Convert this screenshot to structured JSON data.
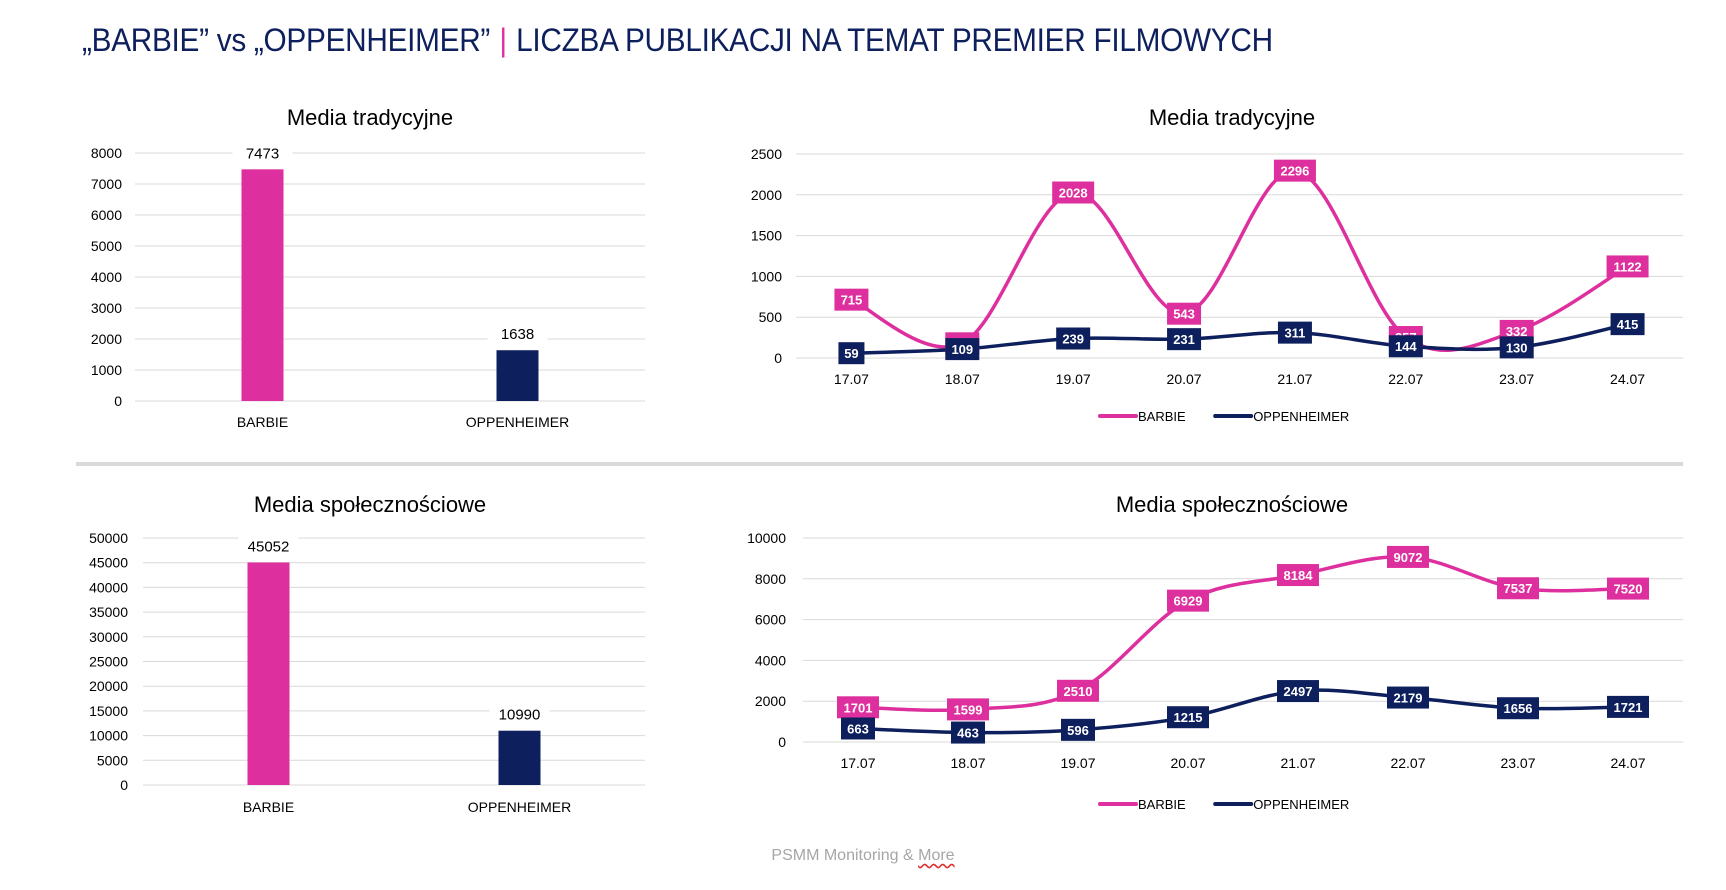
{
  "header": {
    "title_left": "„BARBIE” vs „OPPENHEIMER”",
    "title_sep": "|",
    "title_right": "LICZBA PUBLIKACJI NA TEMAT PREMIER FILMOWYCH"
  },
  "footer": {
    "text": "PSMM Monitoring & ",
    "text_more": "More"
  },
  "colors": {
    "barbie": "#de2f9e",
    "oppenheimer": "#0d1f5c",
    "grid": "#d9d9d9"
  },
  "chart_data": [
    {
      "type": "bar",
      "title": "Media tradycyjne",
      "categories": [
        "BARBIE",
        "OPPENHEIMER"
      ],
      "values": [
        7473,
        1638
      ],
      "yticks": [
        "0",
        "1000",
        "2000",
        "3000",
        "4000",
        "5000",
        "6000",
        "7000",
        "8000"
      ],
      "ylim": [
        0,
        8000
      ]
    },
    {
      "type": "line",
      "title": "Media tradycyjne",
      "x": [
        "17.07",
        "18.07",
        "19.07",
        "20.07",
        "21.07",
        "22.07",
        "23.07",
        "24.07"
      ],
      "series": [
        {
          "name": "BARBIE",
          "values": [
            715,
            180,
            2028,
            543,
            2296,
            257,
            332,
            1122
          ]
        },
        {
          "name": "OPPENHEIMER",
          "values": [
            59,
            109,
            239,
            231,
            311,
            144,
            130,
            415
          ]
        }
      ],
      "yticks": [
        "0",
        "500",
        "1000",
        "1500",
        "2000",
        "2500"
      ],
      "ylim": [
        0,
        2500
      ],
      "legend": "bottom"
    },
    {
      "type": "bar",
      "title": "Media społecznościowe",
      "categories": [
        "BARBIE",
        "OPPENHEIMER"
      ],
      "values": [
        45052,
        10990
      ],
      "yticks": [
        "0",
        "5000",
        "10000",
        "15000",
        "20000",
        "25000",
        "30000",
        "35000",
        "40000",
        "45000",
        "50000"
      ],
      "ylim": [
        0,
        50000
      ]
    },
    {
      "type": "line",
      "title": "Media społecznościowe",
      "x": [
        "17.07",
        "18.07",
        "19.07",
        "20.07",
        "21.07",
        "22.07",
        "23.07",
        "24.07"
      ],
      "series": [
        {
          "name": "BARBIE",
          "values": [
            1701,
            1599,
            2510,
            6929,
            8184,
            9072,
            7537,
            7520
          ]
        },
        {
          "name": "OPPENHEIMER",
          "values": [
            663,
            463,
            596,
            1215,
            2497,
            2179,
            1656,
            1721
          ]
        }
      ],
      "yticks": [
        "0",
        "2000",
        "4000",
        "6000",
        "8000",
        "10000"
      ],
      "ylim": [
        0,
        10000
      ],
      "legend": "bottom"
    }
  ]
}
